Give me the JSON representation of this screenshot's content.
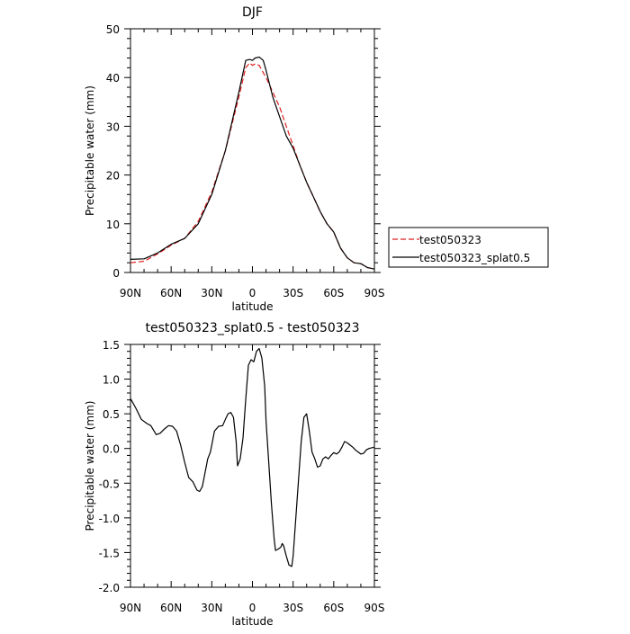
{
  "chart_data": [
    {
      "type": "line",
      "title": "DJF",
      "xlabel": "latitude",
      "ylabel": "Precipitable water (mm)",
      "xlim": [
        90,
        -90
      ],
      "ylim": [
        0,
        50
      ],
      "x_ticks": [
        90,
        60,
        30,
        0,
        -30,
        -60,
        -90
      ],
      "x_tick_labels": [
        "90N",
        "60N",
        "30N",
        "0",
        "30S",
        "60S",
        "90S"
      ],
      "y_ticks": [
        0,
        10,
        20,
        30,
        40,
        50
      ],
      "y_tick_labels": [
        "0",
        "10",
        "20",
        "30",
        "40",
        "50"
      ],
      "legend_position": "right",
      "series": [
        {
          "name": "test050323",
          "color": "#dd2222",
          "dash": "dashed",
          "x": [
            90,
            80,
            70,
            60,
            50,
            40,
            30,
            20,
            10,
            5,
            2,
            0,
            -2,
            -5,
            -8,
            -10,
            -15,
            -20,
            -25,
            -30,
            -35,
            -40,
            -45,
            -50,
            -55,
            -60,
            -65,
            -70,
            -75,
            -80,
            -85,
            -90
          ],
          "y": [
            2.0,
            2.3,
            3.8,
            5.6,
            7.0,
            10.5,
            16.5,
            25.0,
            36.0,
            42.0,
            43.0,
            42.5,
            42.8,
            42.5,
            41.0,
            40.0,
            37.0,
            34.0,
            30.0,
            26.0,
            22.0,
            18.5,
            15.5,
            12.5,
            10.0,
            8.3,
            5.0,
            3.0,
            2.0,
            1.8,
            1.0,
            0.7
          ]
        },
        {
          "name": "test050323_splat0.5",
          "color": "#000000",
          "dash": "solid",
          "x": [
            90,
            80,
            70,
            60,
            50,
            40,
            30,
            20,
            10,
            5,
            2,
            0,
            -2,
            -5,
            -8,
            -10,
            -15,
            -20,
            -25,
            -30,
            -35,
            -40,
            -45,
            -50,
            -55,
            -60,
            -65,
            -70,
            -75,
            -80,
            -85,
            -90
          ],
          "y": [
            2.7,
            2.8,
            4.0,
            5.8,
            7.0,
            10.0,
            16.0,
            25.0,
            37.0,
            43.5,
            43.7,
            43.5,
            44.0,
            44.2,
            43.5,
            41.5,
            36.0,
            32.0,
            28.0,
            25.5,
            22.0,
            18.5,
            15.5,
            12.5,
            10.0,
            8.3,
            5.0,
            3.0,
            2.0,
            1.8,
            1.0,
            0.7
          ]
        }
      ]
    },
    {
      "type": "line",
      "title": "test050323_splat0.5 - test050323",
      "xlabel": "latitude",
      "ylabel": "Precipitable water (mm)",
      "xlim": [
        90,
        -90
      ],
      "ylim": [
        -2.0,
        1.5
      ],
      "x_ticks": [
        90,
        60,
        30,
        0,
        -30,
        -60,
        -90
      ],
      "x_tick_labels": [
        "90N",
        "60N",
        "30N",
        "0",
        "30S",
        "60S",
        "90S"
      ],
      "y_ticks": [
        1.5,
        1.0,
        0.5,
        0.0,
        -0.5,
        -1.0,
        -1.5,
        -2.0
      ],
      "y_tick_labels": [
        "1.5",
        "1.0",
        "0.5",
        "0.0",
        "-0.5",
        "-1.0",
        "-1.5",
        "-2.0"
      ],
      "series": [
        {
          "color": "#000000",
          "dash": "solid",
          "x": [
            90,
            86,
            82,
            78,
            75,
            71,
            68,
            65,
            62,
            59,
            56,
            53,
            50,
            47,
            44,
            41,
            39,
            37,
            35,
            33,
            31,
            28,
            25,
            22,
            20,
            18,
            16,
            14,
            12,
            11,
            9,
            7,
            5,
            3,
            1,
            -1,
            -3,
            -5,
            -7,
            -9,
            -10,
            -12,
            -14,
            -16,
            -17,
            -19,
            -21,
            -22,
            -23,
            -25,
            -27,
            -29,
            -30,
            -32,
            -34,
            -36,
            -38,
            -40,
            -42,
            -44,
            -46,
            -48,
            -50,
            -52,
            -54,
            -56,
            -58,
            -60,
            -62,
            -64,
            -66,
            -68,
            -70,
            -72,
            -74,
            -76,
            -78,
            -80,
            -82,
            -84,
            -86,
            -88,
            -90
          ],
          "y": [
            0.72,
            0.58,
            0.42,
            0.36,
            0.33,
            0.2,
            0.22,
            0.28,
            0.33,
            0.32,
            0.25,
            0.05,
            -0.2,
            -0.42,
            -0.48,
            -0.6,
            -0.62,
            -0.55,
            -0.35,
            -0.15,
            -0.05,
            0.25,
            0.32,
            0.33,
            0.42,
            0.5,
            0.52,
            0.45,
            0.1,
            -0.25,
            -0.15,
            0.15,
            0.7,
            1.2,
            1.28,
            1.25,
            1.4,
            1.44,
            1.3,
            0.9,
            0.4,
            -0.2,
            -0.8,
            -1.3,
            -1.47,
            -1.45,
            -1.42,
            -1.37,
            -1.4,
            -1.55,
            -1.68,
            -1.7,
            -1.55,
            -1.0,
            -0.45,
            0.1,
            0.45,
            0.5,
            0.25,
            -0.05,
            -0.15,
            -0.27,
            -0.25,
            -0.15,
            -0.12,
            -0.15,
            -0.1,
            -0.06,
            -0.08,
            -0.05,
            0.02,
            0.1,
            0.08,
            0.05,
            0.02,
            -0.02,
            -0.05,
            -0.08,
            -0.07,
            -0.02,
            0.0,
            0.01,
            0.02
          ]
        }
      ]
    }
  ]
}
